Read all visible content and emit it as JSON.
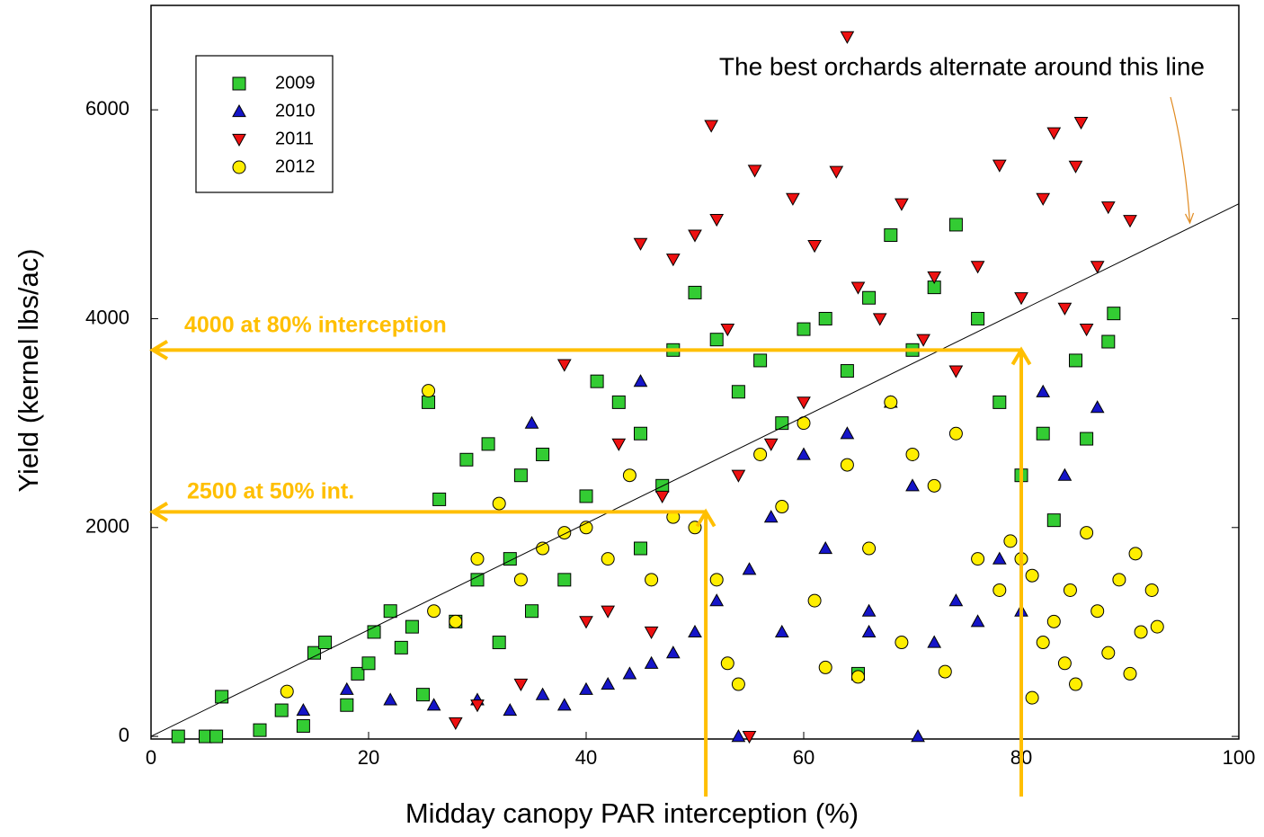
{
  "chart_data": {
    "type": "scatter",
    "x_label": "Midday canopy PAR interception (%)",
    "y_label": "Yield (kernel lbs/ac)",
    "xlim": [
      0,
      100
    ],
    "ylim": [
      -25,
      7000
    ],
    "xticks": [
      0,
      20,
      40,
      60,
      80,
      100
    ],
    "yticks": [
      0,
      2000,
      4000,
      6000
    ],
    "legend": "upper left",
    "reference_line": {
      "x": [
        0,
        100
      ],
      "y": [
        0,
        5100
      ],
      "color": "#000000"
    },
    "annotation_color": "#ffbf00",
    "annotations": [
      {
        "text": "4000 at 80% interception",
        "x": 80,
        "y": 3700
      },
      {
        "text": "2500 at 50% int.",
        "x": 51,
        "y": 2150
      },
      {
        "text": "The best orchards alternate around this line",
        "x": 95.5,
        "y": 4900
      }
    ],
    "series": [
      {
        "name": "2009",
        "marker": "square",
        "color": "#33cc33",
        "x": [
          2.5,
          5,
          6,
          6.5,
          10,
          12,
          14,
          15,
          16,
          18,
          19,
          20,
          20.5,
          22,
          23,
          24,
          25,
          25.5,
          26.5,
          28,
          29,
          30,
          31,
          32,
          33,
          34,
          36,
          38,
          40,
          41,
          43,
          45,
          47,
          48,
          50,
          52,
          54,
          56,
          58,
          60,
          62,
          64,
          66,
          68,
          70,
          72,
          74,
          76,
          78,
          80,
          82,
          83,
          85,
          86,
          88,
          88.5,
          65,
          45,
          35
        ],
        "y": [
          0,
          0,
          0,
          380,
          60,
          250,
          100,
          800,
          900,
          300,
          600,
          700,
          1000,
          1200,
          850,
          1050,
          400,
          3200,
          2270,
          1100,
          2650,
          1500,
          2800,
          900,
          1700,
          2500,
          2700,
          1500,
          2300,
          3400,
          3200,
          2900,
          2400,
          3700,
          4250,
          3800,
          3300,
          3600,
          3000,
          3900,
          4000,
          3500,
          4200,
          4800,
          3700,
          4300,
          4900,
          4000,
          3200,
          2500,
          2900,
          2070,
          3600,
          2850,
          3780,
          4050,
          600,
          1800,
          1200
        ]
      },
      {
        "name": "2010",
        "marker": "triangle-up",
        "color": "#1515c8",
        "x": [
          14,
          18,
          22,
          26,
          30,
          33,
          35,
          36,
          38,
          40,
          42,
          44,
          45,
          46,
          48,
          50,
          52,
          54,
          55,
          57,
          58,
          60,
          62,
          64,
          66,
          68,
          70,
          70.5,
          72,
          74,
          76,
          78,
          80,
          82,
          87,
          84,
          66
        ],
        "y": [
          250,
          450,
          350,
          300,
          350,
          250,
          3000,
          400,
          300,
          450,
          500,
          600,
          3400,
          700,
          800,
          1000,
          1300,
          0,
          1600,
          2100,
          1000,
          2700,
          1800,
          2900,
          1200,
          3200,
          2400,
          0,
          900,
          1300,
          1100,
          1700,
          1200,
          3300,
          3150,
          2500,
          1000
        ]
      },
      {
        "name": "2011",
        "marker": "triangle-down",
        "color": "#ee1111",
        "x": [
          28,
          30,
          34,
          38,
          40,
          42,
          43,
          45,
          46,
          48,
          50,
          51.5,
          52,
          53,
          54,
          55,
          55.5,
          57,
          59,
          61,
          63,
          64,
          65,
          67,
          69,
          71,
          72,
          74,
          76,
          78,
          80,
          82,
          83,
          84,
          85,
          85.5,
          87,
          88,
          90,
          86,
          60,
          47
        ],
        "y": [
          130,
          300,
          500,
          3560,
          1100,
          1200,
          2800,
          4720,
          1000,
          4570,
          4800,
          5850,
          4950,
          3900,
          2500,
          0,
          5420,
          2800,
          5150,
          4700,
          5410,
          6700,
          4300,
          4000,
          5100,
          3800,
          4400,
          3500,
          4500,
          5470,
          4200,
          5150,
          5780,
          4100,
          5460,
          5880,
          4500,
          5070,
          4940,
          3900,
          3200,
          2300
        ]
      },
      {
        "name": "2012",
        "marker": "circle",
        "color": "#ffee00",
        "x": [
          12.5,
          25.5,
          26,
          28,
          30,
          32,
          34,
          36,
          38,
          40,
          42,
          44,
          46,
          48,
          50,
          52,
          53,
          54,
          56,
          58,
          60,
          61,
          62,
          64,
          65,
          66,
          68,
          69,
          70,
          72,
          73,
          74,
          76,
          78,
          79,
          80,
          81,
          81,
          82,
          83,
          84,
          84.5,
          85,
          86,
          87,
          88,
          89,
          90,
          90.5,
          91,
          92,
          92.5
        ],
        "y": [
          430,
          3310,
          1200,
          1100,
          1700,
          2230,
          1500,
          1800,
          1950,
          2000,
          1700,
          2500,
          1500,
          2100,
          2000,
          1500,
          700,
          500,
          2700,
          2200,
          3000,
          1300,
          660,
          2600,
          570,
          1800,
          3200,
          900,
          2700,
          2400,
          620,
          2900,
          1700,
          1400,
          1870,
          1700,
          1540,
          370,
          900,
          1100,
          700,
          1400,
          500,
          1950,
          1200,
          800,
          1500,
          600,
          1750,
          1000,
          1400,
          1050
        ]
      }
    ]
  }
}
